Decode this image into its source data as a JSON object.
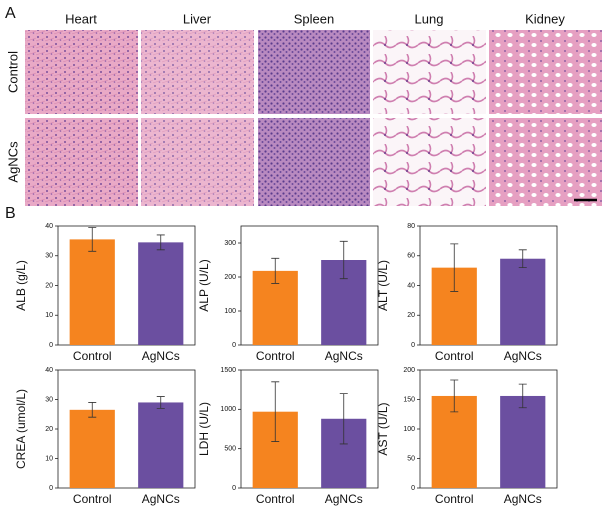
{
  "panel_a": {
    "label": "A",
    "columns": [
      "Heart",
      "Liver",
      "Spleen",
      "Lung",
      "Kidney"
    ],
    "rows": [
      "Control",
      "AgNCs"
    ]
  },
  "panel_b": {
    "label": "B"
  },
  "chart_data": [
    {
      "type": "bar",
      "ylabel": "ALB (g/L)",
      "categories": [
        "Control",
        "AgNCs"
      ],
      "values": [
        35.5,
        34.5
      ],
      "errors": [
        4,
        2.5
      ],
      "colors": [
        "#f5841f",
        "#6b4fa0"
      ],
      "ylim": [
        0,
        40
      ],
      "yticks": [
        0,
        10,
        20,
        30,
        40
      ]
    },
    {
      "type": "bar",
      "ylabel": "ALP (U/L)",
      "categories": [
        "Control",
        "AgNCs"
      ],
      "values": [
        218,
        250
      ],
      "errors": [
        37,
        55
      ],
      "colors": [
        "#f5841f",
        "#6b4fa0"
      ],
      "ylim": [
        0,
        350
      ],
      "yticks": [
        0,
        100,
        200,
        300
      ]
    },
    {
      "type": "bar",
      "ylabel": "ALT (U/L)",
      "categories": [
        "Control",
        "AgNCs"
      ],
      "values": [
        52,
        58
      ],
      "errors": [
        16,
        6
      ],
      "colors": [
        "#f5841f",
        "#6b4fa0"
      ],
      "ylim": [
        0,
        80
      ],
      "yticks": [
        0,
        20,
        40,
        60,
        80
      ]
    },
    {
      "type": "bar",
      "ylabel": "CREA (umol/L)",
      "categories": [
        "Control",
        "AgNCs"
      ],
      "values": [
        26.5,
        29
      ],
      "errors": [
        2.5,
        2
      ],
      "colors": [
        "#f5841f",
        "#6b4fa0"
      ],
      "ylim": [
        0,
        40
      ],
      "yticks": [
        0,
        10,
        20,
        30,
        40
      ]
    },
    {
      "type": "bar",
      "ylabel": "LDH (U/L)",
      "categories": [
        "Control",
        "AgNCs"
      ],
      "values": [
        970,
        880
      ],
      "errors": [
        380,
        320
      ],
      "colors": [
        "#f5841f",
        "#6b4fa0"
      ],
      "ylim": [
        0,
        1500
      ],
      "yticks": [
        0,
        500,
        1000,
        1500
      ]
    },
    {
      "type": "bar",
      "ylabel": "AST (U/L)",
      "categories": [
        "Control",
        "AgNCs"
      ],
      "values": [
        156,
        156
      ],
      "errors": [
        27,
        20
      ],
      "colors": [
        "#f5841f",
        "#6b4fa0"
      ],
      "ylim": [
        0,
        200
      ],
      "yticks": [
        0,
        50,
        100,
        150,
        200
      ]
    }
  ]
}
